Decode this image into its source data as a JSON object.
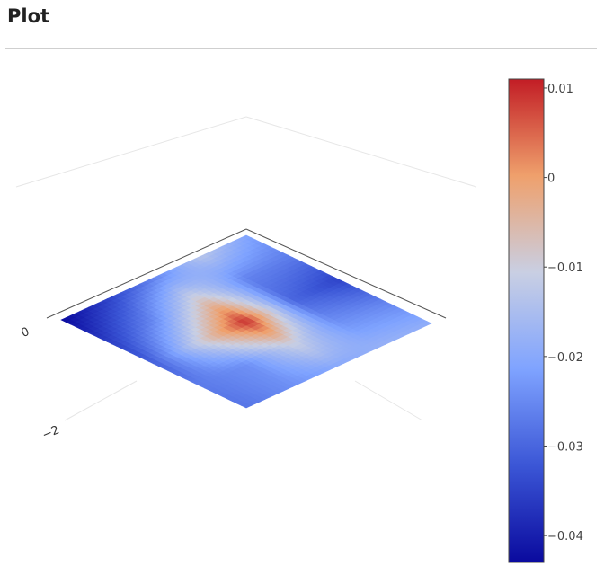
{
  "page": {
    "title": "Plot"
  },
  "chart_data": {
    "type": "surface",
    "title": "",
    "xlabel": "",
    "ylabel": "",
    "zlabel": "",
    "grid": true,
    "colorscale": "coolwarm",
    "colorscale_stops": [
      "#0a0a9e",
      "#3b56d6",
      "#7fa3ff",
      "#c9cfe3",
      "#efa06c",
      "#c21d25"
    ],
    "colorbar": {
      "range": [
        -0.043,
        0.011
      ],
      "ticks": [
        0.01,
        0,
        -0.01,
        -0.02,
        -0.03,
        -0.04
      ],
      "tick_labels": [
        "0.01",
        "0",
        "−0.01",
        "−0.02",
        "−0.03",
        "−0.04"
      ]
    },
    "axis_tick_labels": [
      "0",
      "−2"
    ],
    "surface_grid": {
      "rows": 5,
      "cols": 5,
      "z": [
        [
          -0.021,
          -0.027,
          -0.035,
          -0.026,
          -0.019
        ],
        [
          -0.013,
          -0.026,
          -0.03,
          -0.024,
          -0.018
        ],
        [
          -0.026,
          -0.008,
          0.01,
          -0.01,
          -0.02
        ],
        [
          -0.035,
          -0.025,
          -0.01,
          -0.024,
          -0.024
        ],
        [
          -0.043,
          -0.036,
          -0.031,
          -0.027,
          -0.028
        ]
      ]
    }
  }
}
